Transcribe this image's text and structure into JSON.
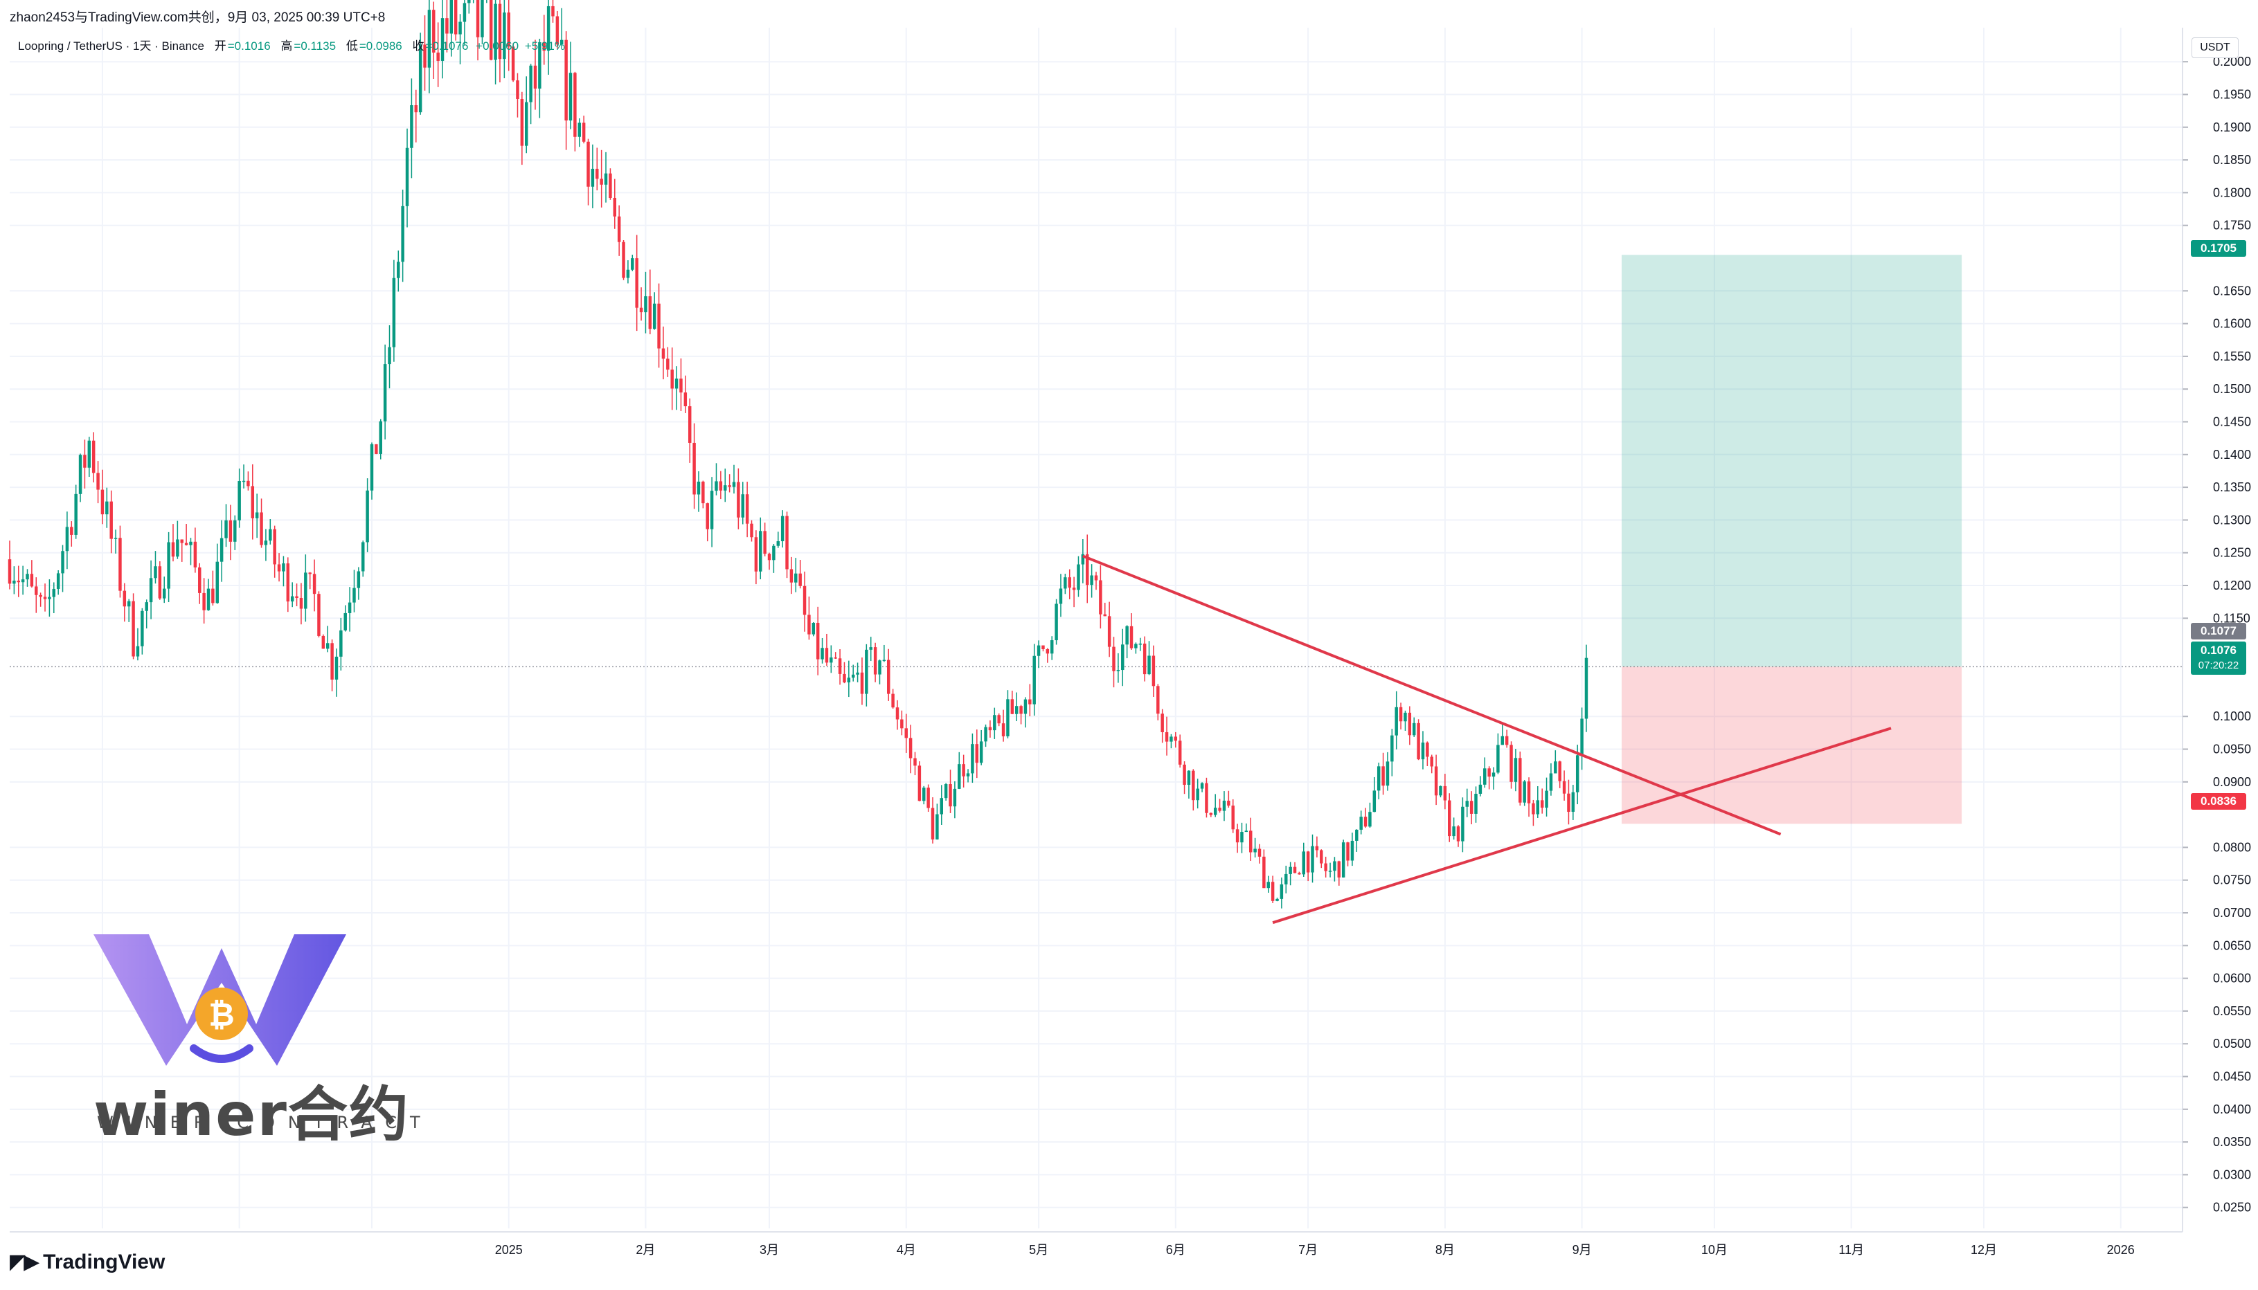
{
  "header": {
    "credit": "zhaon2453与TradingView.com共创，9月 03, 2025 00:39 UTC+8",
    "symbol": "Loopring / TetherUS · 1天 · Binance",
    "open_label": "开",
    "open": "=0.1016",
    "high_label": "高",
    "high": "=0.1135",
    "low_label": "低",
    "low": "=0.0986",
    "close_label": "收",
    "close": "=0.1076",
    "change": "+0.0060",
    "change_pct": "+5.91%"
  },
  "currency": "USDT",
  "logo": "TradingView",
  "watermark": {
    "brand": "winer合约",
    "sub": "WINER CONTRACT"
  },
  "colors": {
    "up": "#089981",
    "down": "#f23645",
    "trendline": "#e0384a",
    "target": "#089981",
    "stop": "#f23645",
    "current": "#089981",
    "last": "#787b86"
  },
  "badges": {
    "target": "0.1705",
    "last": "0.1077",
    "current": "0.1076",
    "countdown": "07:20:22",
    "stop": "0.0836"
  },
  "chart_data": {
    "type": "candlestick",
    "title": "Loopring / TetherUS · 1天 · Binance",
    "x_tick_labels": [
      "2025",
      "2月",
      "3月",
      "4月",
      "5月",
      "6月",
      "7月",
      "8月",
      "9月",
      "10月",
      "11月",
      "12月",
      "2026"
    ],
    "y_tick_labels": [
      "0.2000",
      "0.1950",
      "0.1900",
      "0.1850",
      "0.1800",
      "0.1750",
      "0.1650",
      "0.1600",
      "0.1550",
      "0.1500",
      "0.1450",
      "0.1400",
      "0.1350",
      "0.1300",
      "0.1250",
      "0.1200",
      "0.1150",
      "0.1000",
      "0.0950",
      "0.0900",
      "0.0800",
      "0.0750",
      "0.0700",
      "0.0650",
      "0.0600",
      "0.0550",
      "0.0500",
      "0.0450",
      "0.0400",
      "0.0350",
      "0.0300",
      "0.0250"
    ],
    "ylim": [
      0.0218,
      0.2052
    ],
    "x_range": [
      "2024-09-10",
      "2026-01-15"
    ],
    "grid": true,
    "price_path": [
      [
        "2024-09-10",
        0.124
      ],
      [
        "2024-09-18",
        0.115
      ],
      [
        "2024-09-28",
        0.142
      ],
      [
        "2024-10-08",
        0.112
      ],
      [
        "2024-10-18",
        0.128
      ],
      [
        "2024-10-25",
        0.118
      ],
      [
        "2024-11-02",
        0.135
      ],
      [
        "2024-11-10",
        0.122
      ],
      [
        "2024-11-18",
        0.118
      ],
      [
        "2024-11-22",
        0.108
      ],
      [
        "2024-11-28",
        0.125
      ],
      [
        "2024-12-04",
        0.15
      ],
      [
        "2024-12-09",
        0.185
      ],
      [
        "2024-12-14",
        0.205
      ],
      [
        "2024-12-30",
        0.205
      ],
      [
        "2025-01-04",
        0.19
      ],
      [
        "2025-01-10",
        0.204
      ],
      [
        "2025-01-18",
        0.188
      ],
      [
        "2025-01-26",
        0.172
      ],
      [
        "2025-02-02",
        0.164
      ],
      [
        "2025-02-08",
        0.15
      ],
      [
        "2025-02-14",
        0.13
      ],
      [
        "2025-02-20",
        0.136
      ],
      [
        "2025-02-26",
        0.125
      ],
      [
        "2025-03-04",
        0.128
      ],
      [
        "2025-03-10",
        0.112
      ],
      [
        "2025-03-18",
        0.104
      ],
      [
        "2025-03-26",
        0.109
      ],
      [
        "2025-04-01",
        0.096
      ],
      [
        "2025-04-07",
        0.083
      ],
      [
        "2025-04-14",
        0.093
      ],
      [
        "2025-04-22",
        0.098
      ],
      [
        "2025-04-28",
        0.103
      ],
      [
        "2025-05-06",
        0.118
      ],
      [
        "2025-05-12",
        0.122
      ],
      [
        "2025-05-18",
        0.11
      ],
      [
        "2025-05-24",
        0.112
      ],
      [
        "2025-05-30",
        0.098
      ],
      [
        "2025-06-06",
        0.088
      ],
      [
        "2025-06-12",
        0.085
      ],
      [
        "2025-06-18",
        0.08
      ],
      [
        "2025-06-24",
        0.072
      ],
      [
        "2025-06-30",
        0.079
      ],
      [
        "2025-07-06",
        0.076
      ],
      [
        "2025-07-12",
        0.081
      ],
      [
        "2025-07-18",
        0.092
      ],
      [
        "2025-07-22",
        0.102
      ],
      [
        "2025-07-28",
        0.092
      ],
      [
        "2025-08-03",
        0.082
      ],
      [
        "2025-08-08",
        0.087
      ],
      [
        "2025-08-14",
        0.096
      ],
      [
        "2025-08-20",
        0.086
      ],
      [
        "2025-08-26",
        0.091
      ],
      [
        "2025-08-30",
        0.087
      ],
      [
        "2025-09-02",
        0.1076
      ]
    ],
    "trendlines": [
      {
        "name": "",
        "from": [
          "2025-05-11",
          0.1245
        ],
        "to": [
          "2025-10-16",
          0.082
        ]
      },
      {
        "name": "",
        "from": [
          "2025-06-23",
          0.0685
        ],
        "to": [
          "2025-11-10",
          0.0982
        ]
      }
    ],
    "long_position": {
      "start": "2025-09-10",
      "end": "2025-11-26",
      "entry": 0.1076,
      "target": 0.1705,
      "stop": 0.0836
    }
  }
}
